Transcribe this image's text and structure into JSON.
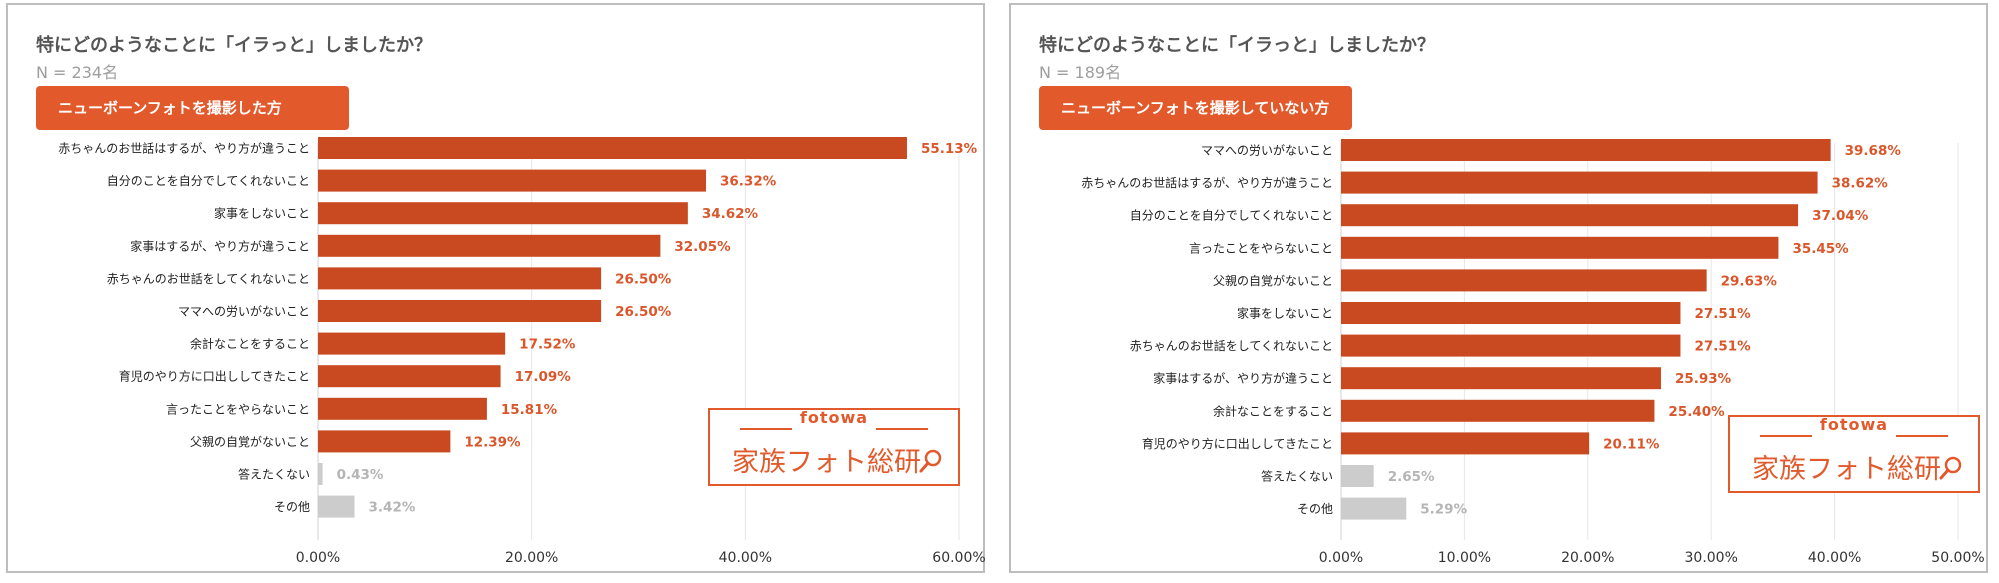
{
  "panels": [
    {
      "title": "特にどのようなことに「イラっと」しましたか？",
      "n_label": "N = 234名",
      "group_label": "ニューボーンフォトを撮影した方",
      "logo": {
        "top": "fotowa",
        "main": "家族フォト総研"
      }
    },
    {
      "title": "特にどのようなことに「イラっと」しましたか？",
      "n_label": "N = 189名",
      "group_label": "ニューボーンフォトを撮影していない方",
      "logo": {
        "top": "fotowa",
        "main": "家族フォト総研"
      }
    }
  ],
  "colors": {
    "bar": "#c94a21",
    "bar_muted": "#cccccc",
    "value_label": "#d9572b",
    "value_label_muted": "#b5b5b5",
    "accent": "#e25a2c"
  },
  "chart_data": [
    {
      "type": "bar",
      "orientation": "horizontal",
      "title": "特にどのようなことに「イラっと」しましたか？",
      "subtitle": "N = 234名",
      "categories": [
        "赤ちゃんのお世話はするが、やり方が違うこと",
        "自分のことを自分でしてくれないこと",
        "家事をしないこと",
        "家事はするが、やり方が違うこと",
        "赤ちゃんのお世話をしてくれないこと",
        "ママへの労いがないこと",
        "余計なことをすること",
        "育児のやり方に口出ししてきたこと",
        "言ったことをやらないこと",
        "父親の自覚がないこと",
        "答えたくない",
        "その他"
      ],
      "values": [
        55.13,
        36.32,
        34.62,
        32.05,
        26.5,
        26.5,
        17.52,
        17.09,
        15.81,
        12.39,
        0.43,
        3.42
      ],
      "value_labels": [
        "55.13%",
        "36.32%",
        "34.62%",
        "32.05%",
        "26.50%",
        "26.50%",
        "17.52%",
        "17.09%",
        "15.81%",
        "12.39%",
        "0.43%",
        "3.42%"
      ],
      "muted": [
        false,
        false,
        false,
        false,
        false,
        false,
        false,
        false,
        false,
        false,
        true,
        true
      ],
      "xlim": [
        0,
        60
      ],
      "xticks": [
        0,
        20,
        40,
        60
      ],
      "xtick_labels": [
        "0.00%",
        "20.00%",
        "40.00%",
        "60.00%"
      ],
      "grid": true
    },
    {
      "type": "bar",
      "orientation": "horizontal",
      "title": "特にどのようなことに「イラっと」しましたか？",
      "subtitle": "N = 189名",
      "categories": [
        "ママへの労いがないこと",
        "赤ちゃんのお世話はするが、やり方が違うこと",
        "自分のことを自分でしてくれないこと",
        "言ったことをやらないこと",
        "父親の自覚がないこと",
        "家事をしないこと",
        "赤ちゃんのお世話をしてくれないこと",
        "家事はするが、やり方が違うこと",
        "余計なことをすること",
        "育児のやり方に口出ししてきたこと",
        "答えたくない",
        "その他"
      ],
      "values": [
        39.68,
        38.62,
        37.04,
        35.45,
        29.63,
        27.51,
        27.51,
        25.93,
        25.4,
        20.11,
        2.65,
        5.29
      ],
      "value_labels": [
        "39.68%",
        "38.62%",
        "37.04%",
        "35.45%",
        "29.63%",
        "27.51%",
        "27.51%",
        "25.93%",
        "25.40%",
        "20.11%",
        "2.65%",
        "5.29%"
      ],
      "muted": [
        false,
        false,
        false,
        false,
        false,
        false,
        false,
        false,
        false,
        false,
        true,
        true
      ],
      "xlim": [
        0,
        50
      ],
      "xticks": [
        0,
        10,
        20,
        30,
        40,
        50
      ],
      "xtick_labels": [
        "0.00%",
        "10.00%",
        "20.00%",
        "30.00%",
        "40.00%",
        "50.00%"
      ],
      "grid": true
    }
  ]
}
